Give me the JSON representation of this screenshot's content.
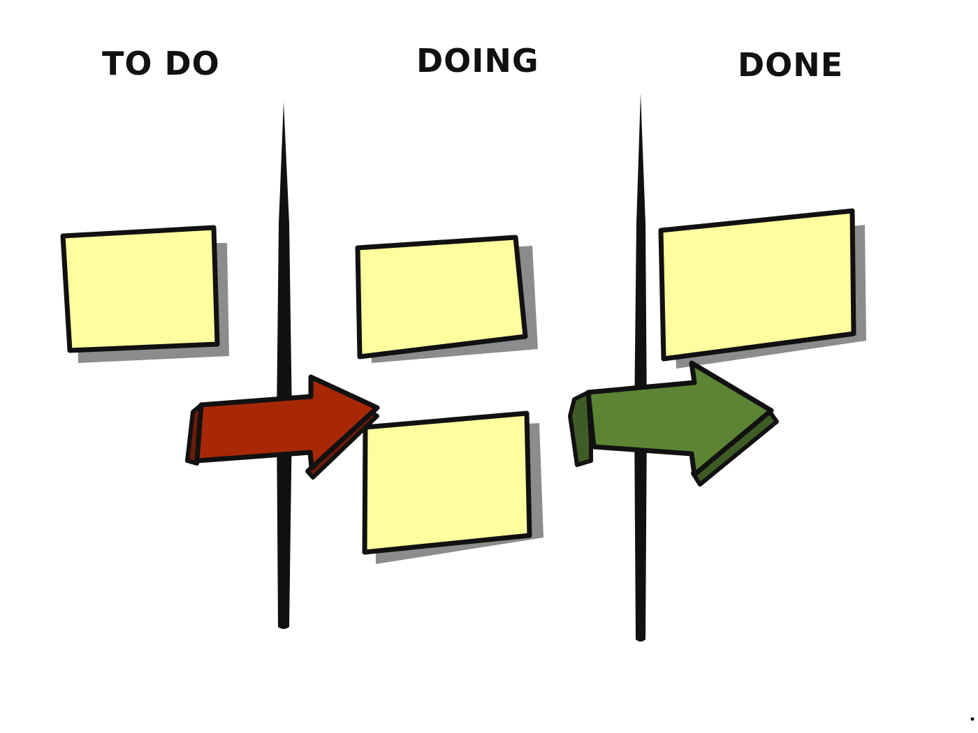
{
  "board": {
    "columns": [
      {
        "title": "TO DO",
        "cards": 1
      },
      {
        "title": "DOING",
        "cards": 2
      },
      {
        "title": "DONE",
        "cards": 1
      }
    ]
  },
  "colors": {
    "card_fill": "#fffe9e",
    "card_outline": "#111111",
    "shadow": "#8c8c8c",
    "divider": "#111111",
    "arrow_todo_to_doing": "#a82806",
    "arrow_todo_to_doing_dark": "#6a1d08",
    "arrow_doing_to_done": "#5c8434",
    "arrow_doing_to_done_dark": "#3f5c26"
  },
  "icons": {
    "arrow_todo_to_doing": "right-arrow-icon",
    "arrow_doing_to_done": "right-arrow-icon"
  }
}
